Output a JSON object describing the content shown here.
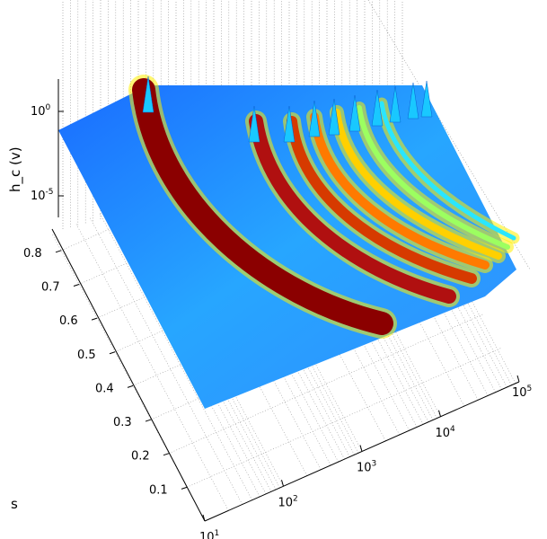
{
  "chart_data": {
    "type": "surface3d",
    "title": "",
    "xlabel": "",
    "ylabel": "s",
    "zlabel": "h_c (v)",
    "x_scale": "log",
    "xlim": [
      10,
      100000
    ],
    "ylim": [
      0,
      0.85
    ],
    "z_scale": "log",
    "colormap": "jet",
    "grid": true,
    "x_ticks": [
      {
        "base": "10",
        "exp": "1"
      },
      {
        "base": "10",
        "exp": "2"
      },
      {
        "base": "10",
        "exp": "3"
      },
      {
        "base": "10",
        "exp": "4"
      },
      {
        "base": "10",
        "exp": "5"
      }
    ],
    "x_tick_values": [
      10,
      100,
      1000,
      10000,
      100000
    ],
    "y_ticks": [
      "0.1",
      "0.2",
      "0.3",
      "0.4",
      "0.5",
      "0.6",
      "0.7",
      "0.8"
    ],
    "y_tick_values": [
      0.1,
      0.2,
      0.3,
      0.4,
      0.5,
      0.6,
      0.7,
      0.8
    ],
    "z_ticks": [
      {
        "base": "10",
        "exp": "0"
      },
      {
        "base": "10",
        "exp": "-5"
      }
    ],
    "ridges": [
      {
        "x": 10,
        "s_center": 0.45
      },
      {
        "x": 100,
        "s_center": 0.5
      },
      {
        "x": 300,
        "s_center": 0.52
      },
      {
        "x": 1000,
        "s_center": 0.55
      },
      {
        "x": 3000,
        "s_center": 0.58
      },
      {
        "x": 10000,
        "s_center": 0.6
      }
    ]
  }
}
